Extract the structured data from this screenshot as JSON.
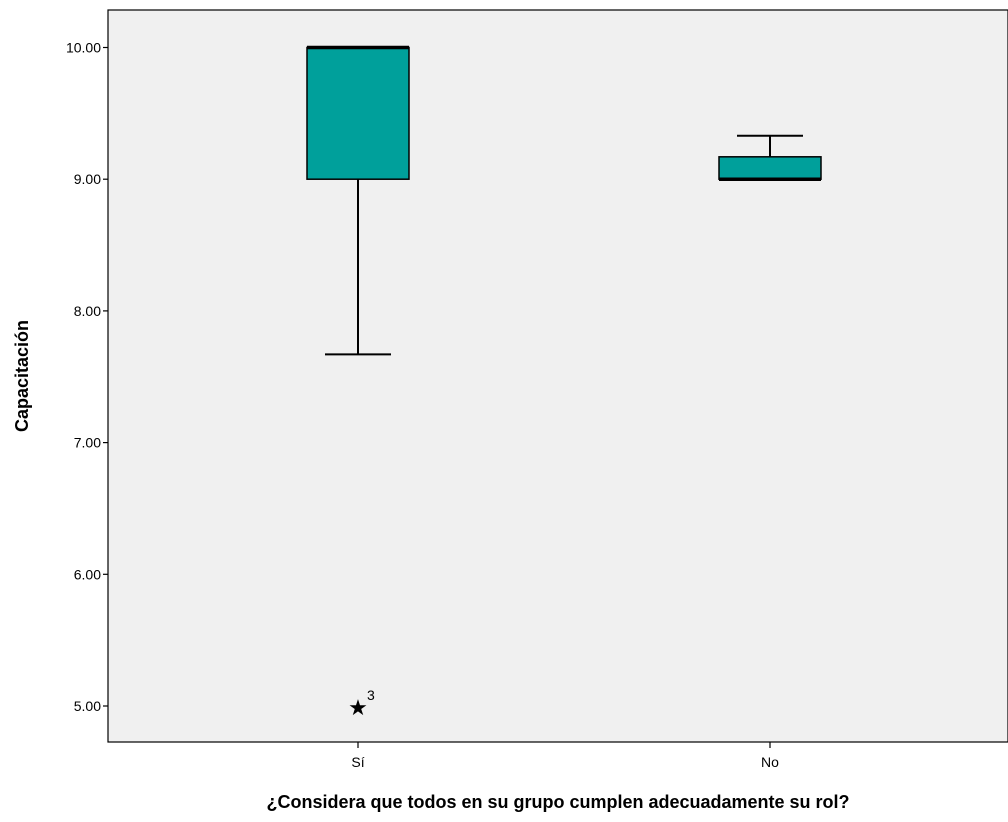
{
  "chart_data": {
    "type": "boxplot",
    "xlabel": "¿Considera que todos en su grupo cumplen adecuadamente su rol?",
    "ylabel": "Capacitación",
    "categories": [
      "Sí",
      "No"
    ],
    "yticks": [
      5,
      6,
      7,
      8,
      9,
      10
    ],
    "ytick_labels": [
      "5.00",
      "6.00",
      "7.00",
      "8.00",
      "9.00",
      "10.00"
    ],
    "ylim": [
      4.8,
      10.28
    ],
    "grid": false,
    "boxes": [
      {
        "category": "Sí",
        "whisker_low": 7.67,
        "q1": 9.0,
        "median": 10.0,
        "q3": 10.0,
        "whisker_high": 10.0,
        "outliers": [
          {
            "value": 5.0,
            "label": "3",
            "marker": "extreme"
          }
        ]
      },
      {
        "category": "No",
        "whisker_low": 9.0,
        "q1": 9.0,
        "median": 9.0,
        "q3": 9.17,
        "whisker_high": 9.33,
        "outliers": []
      }
    ],
    "colors": {
      "box_fill": "#00A09B",
      "plot_background": "#F0F0F0",
      "line": "#000000"
    }
  }
}
